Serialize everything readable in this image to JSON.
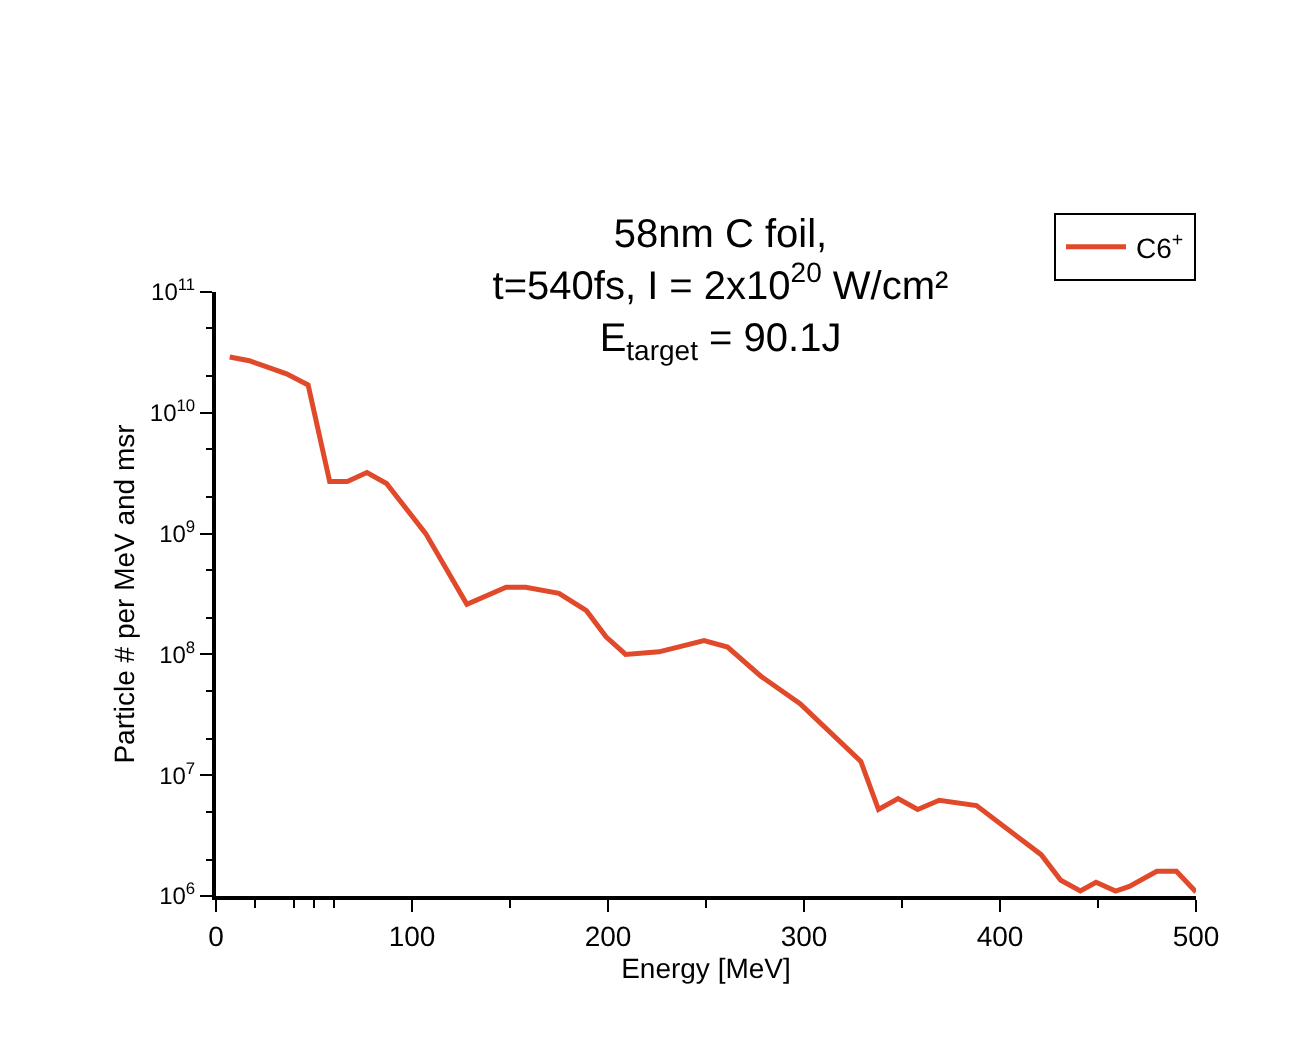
{
  "chart_data": {
    "type": "line",
    "title": "58nm C foil,\nt=540fs, I = 2x10$^{20}$ W/cm²\nE$_{target}$ = 90.1J",
    "xlabel": "Energy [MeV]",
    "ylabel": "Particle # per MeV and msr",
    "x": [
      7,
      17,
      36,
      47,
      58,
      67,
      77,
      87,
      107,
      128,
      148,
      158,
      175,
      189,
      199,
      209,
      226,
      249,
      261,
      278,
      298,
      329,
      338,
      348,
      358,
      369,
      388,
      421,
      431,
      441,
      449,
      459,
      466,
      480,
      490,
      500
    ],
    "series": [
      {
        "name": "C6$^{+}$",
        "color": "#e04a2a",
        "values": [
          29000000000.0,
          27000000000.0,
          21000000000.0,
          17000000000.0,
          2700000000.0,
          2700000000.0,
          3200000000.0,
          2600000000.0,
          1000000000.0,
          260000000.0,
          360000000.0,
          360000000.0,
          320000000.0,
          230000000.0,
          140000000.0,
          100000000.0,
          105000000.0,
          130000000.0,
          115000000.0,
          66000000.0,
          39000000.0,
          13000000.0,
          5200000.0,
          6400000.0,
          5200000.0,
          6200000.0,
          5600000.0,
          2200000.0,
          1350000.0,
          1100000.0,
          1300000.0,
          1100000.0,
          1200000.0,
          1600000.0,
          1600000.0,
          1080000.0
        ]
      }
    ],
    "xlim": [
      0,
      500
    ],
    "xticks": [
      0,
      100,
      200,
      300,
      400,
      500
    ],
    "ylim": [
      1000000.0,
      100000000000.0
    ],
    "yticks": [
      {
        "value": 1000000.0,
        "label": "10$^{6}$"
      },
      {
        "value": 10000000.0,
        "label": "10$^{7}$"
      },
      {
        "value": 100000000.0,
        "label": "10$^{8}$"
      },
      {
        "value": 1000000000.0,
        "label": "10$^{9}$"
      },
      {
        "value": 10000000000.0,
        "label": "10$^{10}$"
      },
      {
        "value": 100000000000.0,
        "label": "10$^{11}$"
      }
    ],
    "log": "y",
    "grid": false,
    "legend": "top right",
    "marker": "none",
    "line_style": "solid"
  }
}
